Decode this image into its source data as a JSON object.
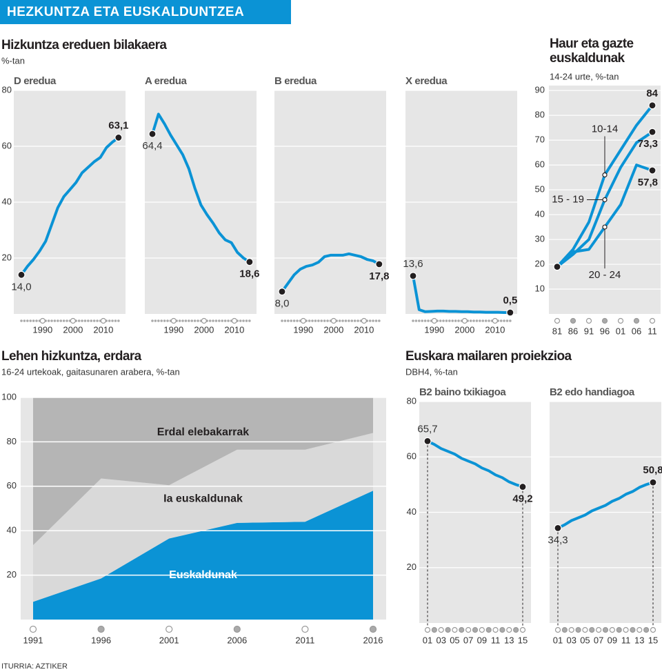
{
  "header": {
    "title": "HEZKUNTZA ETA EUSKALDUNTZEA"
  },
  "chart_data": [
    {
      "type": "line-panels",
      "title": "Hizkuntza ereduen bilakaera",
      "subtitle": "%-tan",
      "color": "#0b93d5",
      "x": [
        1983,
        1985,
        1987,
        1989,
        1991,
        1993,
        1995,
        1997,
        1999,
        2001,
        2003,
        2005,
        2007,
        2009,
        2011,
        2013,
        2015
      ],
      "xlim": [
        1980.5,
        2017.3
      ],
      "xticks": [
        1990,
        2000,
        2010
      ],
      "ylim": [
        0,
        80
      ],
      "yticks": [
        20,
        40,
        60,
        80
      ],
      "grid": true,
      "panels": [
        {
          "title": "D eredua",
          "values": [
            14.0,
            17,
            19.5,
            22.5,
            26,
            32,
            38,
            42,
            44.5,
            47,
            50.5,
            52.5,
            54.5,
            56,
            59.5,
            61.5,
            63.1
          ],
          "value_labels": [
            "14,0",
            null,
            null,
            null,
            null,
            null,
            null,
            null,
            null,
            null,
            null,
            null,
            null,
            null,
            null,
            null,
            "63,1"
          ]
        },
        {
          "title": "A eredua",
          "values": [
            64.4,
            71.5,
            68,
            64,
            60.5,
            57,
            52,
            45,
            39,
            35.5,
            32.5,
            29,
            26.5,
            25.5,
            22,
            20,
            18.6
          ],
          "value_labels": [
            "64,4",
            null,
            null,
            null,
            null,
            null,
            null,
            null,
            null,
            null,
            null,
            null,
            null,
            null,
            null,
            null,
            "18,6"
          ]
        },
        {
          "title": "B eredua",
          "values": [
            8.0,
            11,
            14,
            16,
            17,
            17.5,
            18.5,
            20.5,
            21,
            21,
            21,
            21.5,
            21,
            20.5,
            19.5,
            19,
            17.8
          ],
          "value_labels": [
            "8,0",
            null,
            null,
            null,
            null,
            null,
            null,
            null,
            null,
            null,
            null,
            null,
            null,
            null,
            null,
            null,
            "17,8"
          ]
        },
        {
          "title": "X eredua",
          "values": [
            13.6,
            1.5,
            0.8,
            0.9,
            1.0,
            1.0,
            0.9,
            0.9,
            0.8,
            0.8,
            0.7,
            0.7,
            0.6,
            0.6,
            0.6,
            0.5,
            0.5
          ],
          "value_labels": [
            "13,6",
            null,
            null,
            null,
            null,
            null,
            null,
            null,
            null,
            null,
            null,
            null,
            null,
            null,
            null,
            null,
            "0,5"
          ]
        }
      ]
    },
    {
      "type": "line",
      "title": "Haur eta gazte euskaldunak",
      "subtitle": "14-24 urte, %-tan",
      "categories": [
        "81",
        "86",
        "91",
        "96",
        "01",
        "06",
        "11"
      ],
      "ylim": [
        0,
        92
      ],
      "yticks": [
        10,
        20,
        30,
        40,
        50,
        60,
        70,
        80,
        90
      ],
      "series": [
        {
          "name": "10-14",
          "color": "#0b93d5",
          "values": [
            19,
            26,
            37,
            56,
            66,
            76,
            84
          ]
        },
        {
          "name": "15 - 19",
          "color": "#0b93d5",
          "values": [
            19,
            24,
            30,
            46,
            59,
            69,
            73.3
          ],
          "value_labels": [
            null,
            null,
            null,
            null,
            null,
            null,
            "73,3"
          ]
        },
        {
          "name": "20 - 24",
          "color": "#0b93d5",
          "values": [
            19,
            25,
            26,
            35,
            44,
            60,
            57.8
          ],
          "value_labels": [
            null,
            null,
            null,
            null,
            null,
            null,
            "57,8"
          ]
        }
      ]
    },
    {
      "type": "stacked-area",
      "title": "Lehen hizkuntza, erdara",
      "subtitle": "16-24 urtekoak, gaitasunaren arabera, %-tan",
      "categories": [
        "1991",
        "1996",
        "2001",
        "2006",
        "2011",
        "2016"
      ],
      "ylim": [
        0,
        100
      ],
      "yticks": [
        20,
        40,
        60,
        80,
        100
      ],
      "grid": true,
      "series": [
        {
          "name": "Euskaldunak",
          "color": "#0b93d5",
          "values": [
            8,
            18.5,
            36.5,
            43.5,
            44,
            58
          ]
        },
        {
          "name": "Ia euskaldunak",
          "color": "#d9d9d9",
          "values": [
            25.5,
            45,
            24,
            33,
            32.5,
            26
          ]
        },
        {
          "name": "Erdal elebakarrak",
          "color": "#b5b5b5",
          "values": [
            66.5,
            36.5,
            39.5,
            23.5,
            23.5,
            16
          ]
        }
      ]
    },
    {
      "type": "line-panels",
      "title": "Euskara mailaren proiekzioa",
      "subtitle": "DBH4, %-tan",
      "color": "#0b93d5",
      "categories": [
        "01",
        null,
        "03",
        null,
        "05",
        null,
        "07",
        null,
        "09",
        null,
        "11",
        null,
        "13",
        null,
        "15"
      ],
      "ylim": [
        0,
        80
      ],
      "yticks": [
        20,
        40,
        60,
        80
      ],
      "grid": true,
      "panels": [
        {
          "title": "B2 baino txikiagoa",
          "values": [
            65.7,
            64.5,
            63,
            62,
            61,
            59.5,
            58.5,
            57.5,
            56,
            55,
            53.5,
            52.5,
            51,
            50,
            49.2
          ],
          "value_labels": [
            "65,7",
            null,
            null,
            null,
            null,
            null,
            null,
            null,
            null,
            null,
            null,
            null,
            null,
            null,
            "49,2"
          ]
        },
        {
          "title": "B2 edo handiagoa",
          "values": [
            34.3,
            35.5,
            37,
            38,
            39,
            40.5,
            41.5,
            42.5,
            44,
            45,
            46.5,
            47.5,
            49,
            50,
            50.8
          ],
          "value_labels": [
            "34,3",
            null,
            null,
            null,
            null,
            null,
            null,
            null,
            null,
            null,
            null,
            null,
            null,
            null,
            "50,8"
          ]
        }
      ]
    }
  ],
  "footer": {
    "source": "ITURRIA: AZTIKER"
  }
}
